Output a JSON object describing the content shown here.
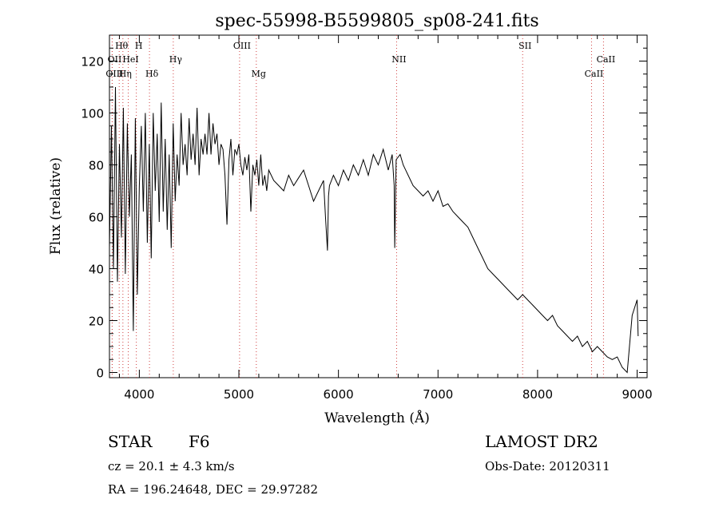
{
  "chart_data": {
    "type": "line",
    "title": "spec-55998-B5599805_sp08-241.fits",
    "xlabel": "Wavelength (Å)",
    "ylabel": "Flux (relative)",
    "xlim": [
      3700,
      9100
    ],
    "ylim": [
      -2,
      130
    ],
    "x_ticks": [
      4000,
      5000,
      6000,
      7000,
      8000,
      9000
    ],
    "y_ticks": [
      0,
      20,
      40,
      60,
      80,
      100,
      120
    ],
    "grid": false,
    "series": [
      {
        "x": [
          3700,
          3720,
          3740,
          3760,
          3780,
          3800,
          3820,
          3840,
          3860,
          3880,
          3900,
          3920,
          3940,
          3960,
          3980,
          4000,
          4020,
          4040,
          4060,
          4080,
          4100,
          4120,
          4140,
          4160,
          4180,
          4200,
          4220,
          4240,
          4260,
          4280,
          4300,
          4320,
          4340,
          4360,
          4380,
          4400,
          4420,
          4440,
          4460,
          4480,
          4500,
          4520,
          4540,
          4560,
          4580,
          4600,
          4620,
          4640,
          4660,
          4680,
          4700,
          4720,
          4740,
          4760,
          4780,
          4800,
          4820,
          4840,
          4860,
          4880,
          4900,
          4920,
          4940,
          4960,
          4980,
          5000,
          5020,
          5040,
          5060,
          5080,
          5100,
          5120,
          5140,
          5160,
          5180,
          5200,
          5220,
          5240,
          5260,
          5280,
          5300,
          5350,
          5400,
          5450,
          5500,
          5550,
          5600,
          5650,
          5700,
          5750,
          5800,
          5850,
          5870,
          5890,
          5900,
          5910,
          5950,
          6000,
          6050,
          6100,
          6150,
          6200,
          6250,
          6300,
          6350,
          6400,
          6450,
          6500,
          6540,
          6560,
          6565,
          6580,
          6620,
          6650,
          6700,
          6750,
          6800,
          6850,
          6900,
          6950,
          7000,
          7050,
          7100,
          7150,
          7200,
          7250,
          7300,
          7350,
          7400,
          7450,
          7500,
          7550,
          7600,
          7650,
          7700,
          7750,
          7800,
          7850,
          7900,
          7950,
          8000,
          8050,
          8100,
          8150,
          8200,
          8250,
          8300,
          8350,
          8400,
          8450,
          8500,
          8550,
          8600,
          8650,
          8700,
          8750,
          8800,
          8850,
          8900,
          8950,
          9000,
          9010
        ],
        "values": [
          48,
          95,
          40,
          110,
          35,
          88,
          52,
          102,
          38,
          96,
          60,
          84,
          16,
          98,
          30,
          72,
          95,
          62,
          100,
          50,
          88,
          44,
          100,
          70,
          92,
          58,
          104,
          62,
          90,
          55,
          84,
          48,
          96,
          66,
          84,
          72,
          100,
          80,
          88,
          76,
          98,
          82,
          92,
          80,
          102,
          76,
          90,
          84,
          92,
          84,
          100,
          84,
          96,
          88,
          92,
          80,
          88,
          86,
          76,
          57,
          82,
          90,
          76,
          86,
          84,
          88,
          80,
          76,
          83,
          78,
          84,
          62,
          80,
          76,
          82,
          72,
          84,
          72,
          76,
          70,
          78,
          74,
          72,
          70,
          76,
          72,
          75,
          78,
          72,
          66,
          70,
          74,
          60,
          47,
          68,
          72,
          76,
          72,
          78,
          74,
          80,
          76,
          82,
          76,
          84,
          80,
          86,
          78,
          84,
          72,
          48,
          82,
          84,
          80,
          76,
          72,
          70,
          68,
          70,
          66,
          70,
          64,
          65,
          62,
          60,
          58,
          56,
          52,
          48,
          44,
          40,
          38,
          36,
          34,
          32,
          30,
          28,
          30,
          28,
          26,
          24,
          22,
          20,
          22,
          18,
          16,
          14,
          12,
          14,
          10,
          12,
          8,
          10,
          8,
          6,
          5,
          6,
          2,
          0,
          22,
          28,
          14
        ]
      }
    ],
    "line_marks": [
      {
        "label": "Hθ",
        "x": 3798,
        "row": 1
      },
      {
        "label": "H",
        "x": 3970,
        "row": 1
      },
      {
        "label": "OII",
        "x": 3728,
        "row": 2
      },
      {
        "label": "HeI",
        "x": 3889,
        "row": 2
      },
      {
        "label": "Hγ",
        "x": 4341,
        "row": 2
      },
      {
        "label": "OIII",
        "x": 3727,
        "row": 3
      },
      {
        "label": "Hη",
        "x": 3835,
        "row": 3
      },
      {
        "label": "Hδ",
        "x": 4102,
        "row": 3
      },
      {
        "label": "OIII",
        "x": 5007,
        "row": 1
      },
      {
        "label": "Mg",
        "x": 5175,
        "row": 3
      },
      {
        "label": "NII",
        "x": 6584,
        "row": 2
      },
      {
        "label": "SII",
        "x": 7850,
        "row": 1
      },
      {
        "label": "CaII",
        "x": 8542,
        "row": 3
      },
      {
        "label": "CaII",
        "x": 8662,
        "row": 2
      }
    ]
  },
  "footer": {
    "object_class": "STAR",
    "subclass": "F6",
    "redshift": "cz = 20.1 ± 4.3 km/s",
    "coords": "RA = 196.24648, DEC =  29.97282",
    "survey": "LAMOST DR2",
    "obs_date": "Obs-Date: 20120311"
  }
}
